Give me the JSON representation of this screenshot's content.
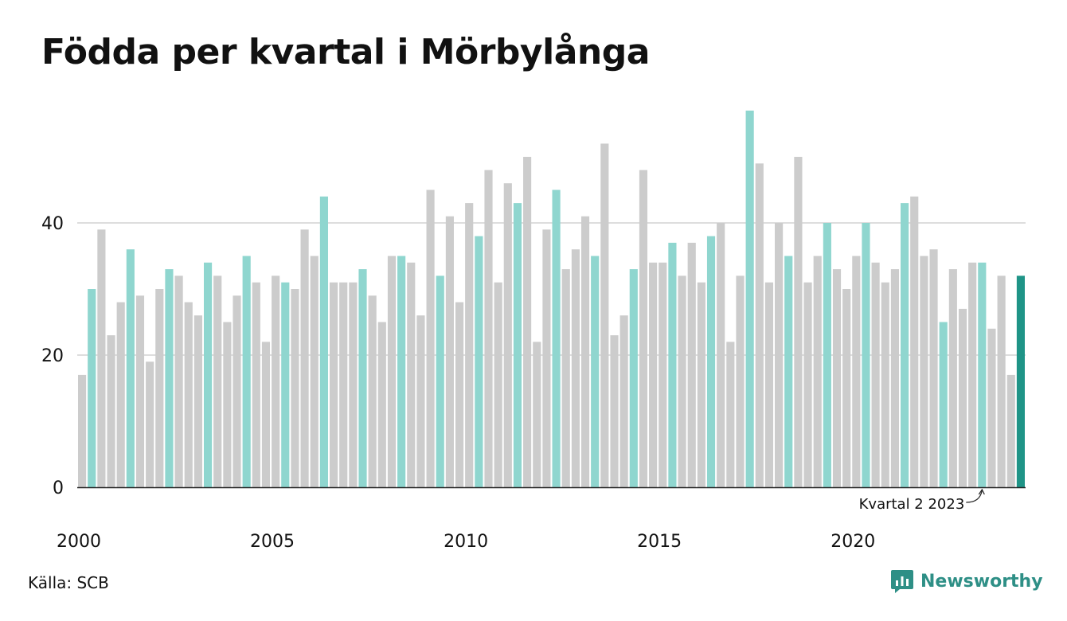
{
  "title": "Födda per kvartal i Mörbylånga",
  "source": "Källa: SCB",
  "brand": {
    "name": "Newsworthy",
    "icon": "newsworthy-logo-icon"
  },
  "colors": {
    "grey": "#cccccc",
    "q2": "#8fd6cf",
    "highlight": "#1f9487",
    "grid": "#dddddd",
    "axis": "#222222",
    "brand": "#2e8f86"
  },
  "chart_data": {
    "type": "bar",
    "title": "Födda per kvartal i Mörbylånga",
    "start_year": 2000,
    "periods_per_year": 4,
    "highlight_quarter": 2,
    "values": [
      17,
      30,
      39,
      23,
      28,
      36,
      29,
      19,
      30,
      33,
      32,
      28,
      26,
      34,
      32,
      25,
      29,
      35,
      31,
      22,
      32,
      31,
      30,
      39,
      35,
      44,
      31,
      31,
      31,
      33,
      29,
      25,
      35,
      35,
      34,
      26,
      45,
      32,
      41,
      28,
      43,
      38,
      48,
      31,
      46,
      43,
      50,
      22,
      39,
      45,
      33,
      36,
      41,
      35,
      52,
      23,
      26,
      33,
      48,
      34,
      34,
      37,
      32,
      37,
      31,
      38,
      40,
      22,
      32,
      57,
      49,
      31,
      40,
      35,
      50,
      31,
      35,
      40,
      33,
      30,
      35,
      40,
      34,
      31,
      33,
      43,
      44,
      35,
      36,
      25,
      33,
      27,
      34,
      34,
      24,
      32,
      17,
      32
    ],
    "x_ticks": [
      "2000",
      "2005",
      "2010",
      "2015",
      "2020"
    ],
    "y_ticks": [
      "0",
      "20",
      "40"
    ],
    "ylim": [
      0,
      60
    ],
    "grid": true,
    "annotation": "Kvartal 2 2023"
  }
}
